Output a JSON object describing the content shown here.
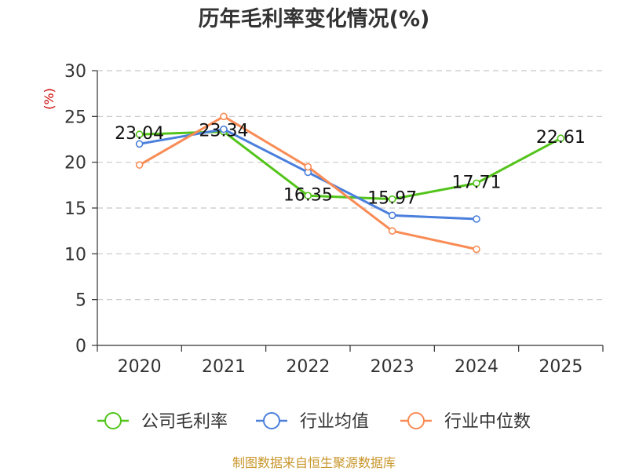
{
  "colors": {
    "company": "#52c41a",
    "industry_avg": "#4a7fdc",
    "industry_median": "#f98b55",
    "unit": "#cc0000",
    "source": "#c8962b",
    "grid": "#c8c8c8",
    "axis": "#333333"
  },
  "chart_data": {
    "type": "line",
    "title": "历年毛利率变化情况(%)",
    "ylabel": "(%)",
    "xlabel": "",
    "categories": [
      "2020",
      "2021",
      "2022",
      "2023",
      "2024",
      "2025"
    ],
    "ylim": [
      0,
      30
    ],
    "yticks": [
      "0",
      "5",
      "10",
      "15",
      "20",
      "25",
      "30"
    ],
    "grid": true,
    "legend_position": "bottom",
    "series": [
      {
        "name": "公司毛利率",
        "color_key": "company",
        "values": [
          23.04,
          23.34,
          16.35,
          15.97,
          17.71,
          22.61
        ],
        "labels": [
          "23.04",
          "23.34",
          "16.35",
          "15.97",
          "17.71",
          "22.61"
        ]
      },
      {
        "name": "行业均值",
        "color_key": "industry_avg",
        "values": [
          22.0,
          23.6,
          18.9,
          14.2,
          13.8,
          null
        ],
        "labels": null
      },
      {
        "name": "行业中位数",
        "color_key": "industry_median",
        "values": [
          19.7,
          25.0,
          19.5,
          12.5,
          10.5,
          null
        ],
        "labels": null
      }
    ],
    "source": "制图数据来自恒生聚源数据库"
  }
}
